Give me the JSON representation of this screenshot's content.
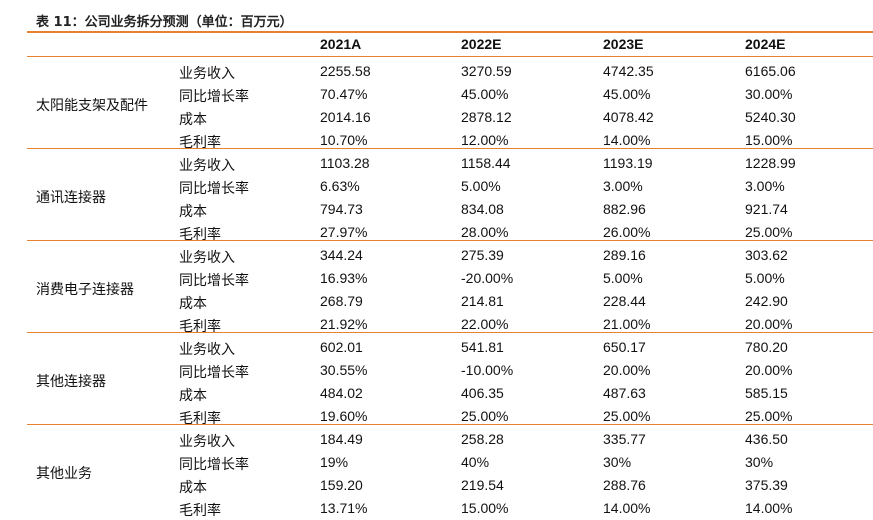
{
  "caption": "表 11：公司业务拆分预测（单位：百万元）",
  "columns": [
    "2021A",
    "2022E",
    "2023E",
    "2024E"
  ],
  "groups": [
    {
      "category": "太阳能支架及配件",
      "rows": [
        {
          "metric": "业务收入",
          "values": [
            "2255.58",
            "3270.59",
            "4742.35",
            "6165.06"
          ]
        },
        {
          "metric": "同比增长率",
          "values": [
            "70.47%",
            "45.00%",
            "45.00%",
            "30.00%"
          ]
        },
        {
          "metric": "成本",
          "values": [
            "2014.16",
            "2878.12",
            "4078.42",
            "5240.30"
          ]
        },
        {
          "metric": "毛利率",
          "values": [
            "10.70%",
            "12.00%",
            "14.00%",
            "15.00%"
          ]
        }
      ]
    },
    {
      "category": "通讯连接器",
      "rows": [
        {
          "metric": "业务收入",
          "values": [
            "1103.28",
            "1158.44",
            "1193.19",
            "1228.99"
          ]
        },
        {
          "metric": "同比增长率",
          "values": [
            "6.63%",
            "5.00%",
            "3.00%",
            "3.00%"
          ]
        },
        {
          "metric": "成本",
          "values": [
            "794.73",
            "834.08",
            "882.96",
            "921.74"
          ]
        },
        {
          "metric": "毛利率",
          "values": [
            "27.97%",
            "28.00%",
            "26.00%",
            "25.00%"
          ]
        }
      ]
    },
    {
      "category": "消费电子连接器",
      "rows": [
        {
          "metric": "业务收入",
          "values": [
            "344.24",
            "275.39",
            "289.16",
            "303.62"
          ]
        },
        {
          "metric": "同比增长率",
          "values": [
            "16.93%",
            "-20.00%",
            "5.00%",
            "5.00%"
          ]
        },
        {
          "metric": "成本",
          "values": [
            "268.79",
            "214.81",
            "228.44",
            "242.90"
          ]
        },
        {
          "metric": "毛利率",
          "values": [
            "21.92%",
            "22.00%",
            "21.00%",
            "20.00%"
          ]
        }
      ]
    },
    {
      "category": "其他连接器",
      "rows": [
        {
          "metric": "业务收入",
          "values": [
            "602.01",
            "541.81",
            "650.17",
            "780.20"
          ]
        },
        {
          "metric": "同比增长率",
          "values": [
            "30.55%",
            "-10.00%",
            "20.00%",
            "20.00%"
          ]
        },
        {
          "metric": "成本",
          "values": [
            "484.02",
            "406.35",
            "487.63",
            "585.15"
          ]
        },
        {
          "metric": "毛利率",
          "values": [
            "19.60%",
            "25.00%",
            "25.00%",
            "25.00%"
          ]
        }
      ]
    },
    {
      "category": "其他业务",
      "rows": [
        {
          "metric": "业务收入",
          "values": [
            "184.49",
            "258.28",
            "335.77",
            "436.50"
          ]
        },
        {
          "metric": "同比增长率",
          "values": [
            "19%",
            "40%",
            "30%",
            "30%"
          ]
        },
        {
          "metric": "成本",
          "values": [
            "159.20",
            "219.54",
            "288.76",
            "375.39"
          ]
        },
        {
          "metric": "毛利率",
          "values": [
            "13.71%",
            "15.00%",
            "14.00%",
            "14.00%"
          ]
        }
      ]
    }
  ]
}
